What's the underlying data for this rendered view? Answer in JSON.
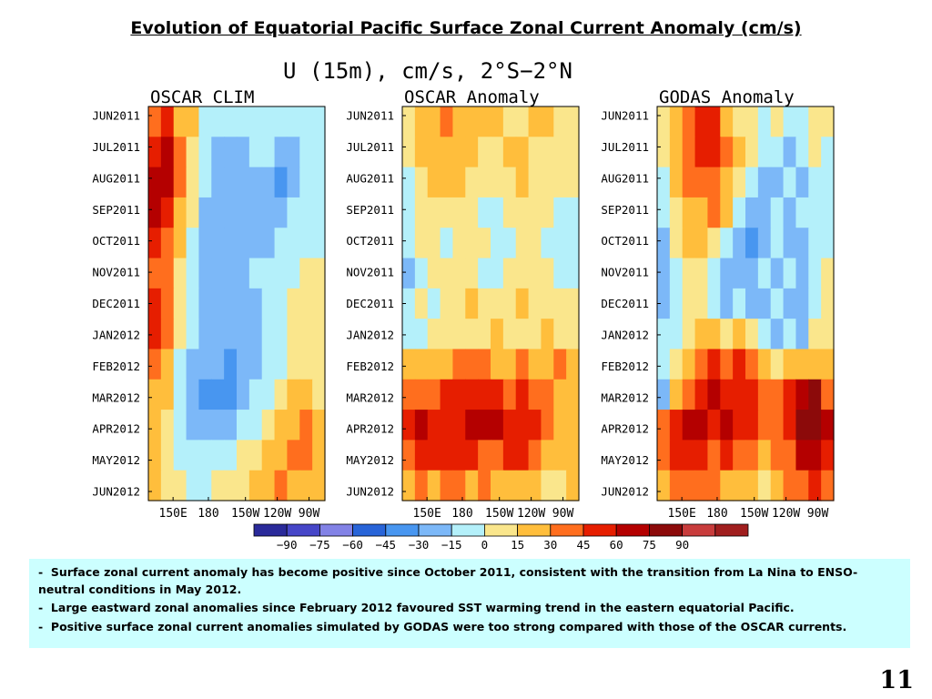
{
  "slide": {
    "title": "Evolution of Equatorial Pacific Surface Zonal Current Anomaly (cm/s)",
    "page_number": "11",
    "bullets": [
      "Surface zonal current anomaly has become positive since October 2011, consistent with the transition from La Nina to ENSO-neutral conditions in May 2012.",
      "Large eastward zonal anomalies since February 2012 favoured SST warming trend in the eastern equatorial Pacific.",
      "Positive surface zonal current anomalies simulated by GODAS were too strong compared with those of the OSCAR currents."
    ],
    "bullet_marker": "-"
  },
  "chart_data": {
    "type": "heatmap",
    "title": "U (15m), cm/s, 2°S−2°N",
    "time_labels": [
      "JUN2011",
      "JUL2011",
      "AUG2011",
      "SEP2011",
      "OCT2011",
      "NOV2011",
      "DEC2011",
      "JAN2012",
      "FEB2012",
      "MAR2012",
      "APR2012",
      "MAY2012",
      "JUN2012"
    ],
    "lon_labels": [
      "150E",
      "180",
      "150W",
      "120W",
      "90W"
    ],
    "colorbar": {
      "ticks": [
        -90,
        -75,
        -60,
        -45,
        -30,
        -15,
        0,
        15,
        30,
        45,
        60,
        75,
        90
      ],
      "colors": [
        "#2a2a9a",
        "#4646c8",
        "#8282e6",
        "#2864d8",
        "#4896f0",
        "#7cb8f8",
        "#b4f0fa",
        "#fae68c",
        "#ffbe3c",
        "#ff6e1e",
        "#e61e00",
        "#b40000",
        "#8c0a0a",
        "#c83c3c",
        "#a01e1e"
      ]
    },
    "panels": [
      {
        "name": "OSCAR CLIM",
        "grid": [
          [
            30,
            45,
            15,
            15,
            -15,
            -15,
            -15,
            -15,
            -15,
            -15,
            -15,
            -15,
            -15,
            -15
          ],
          [
            45,
            60,
            30,
            0,
            -15,
            -30,
            -30,
            -30,
            -15,
            -15,
            -30,
            -30,
            -15,
            -15
          ],
          [
            60,
            60,
            30,
            0,
            -15,
            -30,
            -30,
            -30,
            -30,
            -30,
            -45,
            -30,
            -15,
            -15
          ],
          [
            60,
            45,
            15,
            0,
            -30,
            -30,
            -30,
            -30,
            -30,
            -30,
            -30,
            -15,
            -15,
            -15
          ],
          [
            45,
            30,
            15,
            -15,
            -30,
            -30,
            -30,
            -30,
            -30,
            -30,
            -15,
            -15,
            -15,
            -15
          ],
          [
            30,
            30,
            0,
            -15,
            -30,
            -30,
            -30,
            -30,
            -15,
            -15,
            -15,
            -15,
            0,
            0
          ],
          [
            45,
            30,
            0,
            -15,
            -30,
            -30,
            -30,
            -30,
            -30,
            -15,
            -15,
            0,
            0,
            0
          ],
          [
            45,
            30,
            0,
            -15,
            -30,
            -30,
            -30,
            -30,
            -30,
            -15,
            -15,
            0,
            0,
            0
          ],
          [
            30,
            15,
            -15,
            -30,
            -30,
            -30,
            -45,
            -30,
            -30,
            -15,
            -15,
            0,
            0,
            0
          ],
          [
            15,
            15,
            -15,
            -30,
            -45,
            -45,
            -45,
            -30,
            -15,
            -15,
            0,
            15,
            15,
            0
          ],
          [
            15,
            0,
            -15,
            -30,
            -30,
            -30,
            -30,
            -15,
            -15,
            0,
            15,
            15,
            30,
            15
          ],
          [
            15,
            0,
            -15,
            -15,
            -15,
            -15,
            -15,
            0,
            0,
            15,
            15,
            30,
            30,
            15
          ],
          [
            15,
            0,
            0,
            -15,
            -15,
            0,
            0,
            0,
            15,
            15,
            30,
            15,
            15,
            15
          ]
        ]
      },
      {
        "name": "OSCAR Anomaly",
        "grid": [
          [
            0,
            15,
            15,
            30,
            15,
            15,
            15,
            15,
            0,
            0,
            15,
            15,
            0,
            0
          ],
          [
            0,
            15,
            15,
            15,
            15,
            15,
            0,
            0,
            15,
            15,
            0,
            0,
            0,
            0
          ],
          [
            -15,
            0,
            15,
            15,
            15,
            0,
            0,
            0,
            0,
            15,
            0,
            0,
            0,
            0
          ],
          [
            -15,
            0,
            0,
            0,
            0,
            0,
            -15,
            -15,
            0,
            0,
            0,
            0,
            -15,
            -15
          ],
          [
            -15,
            0,
            0,
            -15,
            0,
            0,
            0,
            -15,
            -15,
            0,
            0,
            -15,
            -15,
            -15
          ],
          [
            -30,
            -15,
            0,
            0,
            0,
            0,
            -15,
            -15,
            0,
            0,
            0,
            0,
            -15,
            -15
          ],
          [
            -15,
            0,
            -15,
            0,
            0,
            15,
            0,
            0,
            0,
            15,
            0,
            0,
            0,
            0
          ],
          [
            -15,
            -15,
            0,
            0,
            0,
            0,
            0,
            15,
            0,
            0,
            0,
            15,
            0,
            0
          ],
          [
            15,
            15,
            15,
            15,
            30,
            30,
            30,
            15,
            15,
            30,
            15,
            15,
            30,
            15
          ],
          [
            30,
            30,
            30,
            45,
            45,
            45,
            45,
            45,
            30,
            45,
            30,
            30,
            15,
            15
          ],
          [
            45,
            60,
            45,
            45,
            45,
            60,
            60,
            60,
            45,
            45,
            45,
            30,
            15,
            15
          ],
          [
            30,
            45,
            45,
            45,
            45,
            45,
            30,
            30,
            45,
            45,
            30,
            15,
            15,
            15
          ],
          [
            15,
            30,
            15,
            30,
            30,
            15,
            30,
            15,
            15,
            15,
            15,
            0,
            0,
            15
          ]
        ]
      },
      {
        "name": "GODAS Anomaly",
        "grid": [
          [
            0,
            15,
            30,
            45,
            45,
            15,
            0,
            0,
            -15,
            0,
            -15,
            -15,
            0,
            0
          ],
          [
            0,
            15,
            30,
            45,
            45,
            30,
            15,
            0,
            -15,
            -15,
            -30,
            -15,
            0,
            -15
          ],
          [
            -15,
            15,
            30,
            30,
            30,
            15,
            0,
            -15,
            -30,
            -30,
            -15,
            -30,
            -15,
            -15
          ],
          [
            -15,
            0,
            15,
            15,
            30,
            15,
            -15,
            -30,
            -30,
            -15,
            -30,
            -15,
            -15,
            -15
          ],
          [
            -30,
            0,
            15,
            15,
            0,
            -15,
            -30,
            -45,
            -30,
            -15,
            -30,
            -30,
            -15,
            -15
          ],
          [
            -30,
            -15,
            0,
            0,
            -15,
            -30,
            -30,
            -30,
            -15,
            -30,
            -15,
            -30,
            -15,
            0
          ],
          [
            -30,
            -15,
            0,
            0,
            -15,
            -30,
            -15,
            -30,
            -30,
            -15,
            -30,
            -30,
            -15,
            0
          ],
          [
            -15,
            -15,
            0,
            15,
            15,
            0,
            15,
            0,
            -15,
            -30,
            -15,
            -30,
            0,
            0
          ],
          [
            -15,
            0,
            15,
            30,
            45,
            30,
            45,
            30,
            15,
            0,
            15,
            15,
            15,
            15
          ],
          [
            -30,
            15,
            30,
            45,
            60,
            45,
            45,
            45,
            30,
            30,
            45,
            60,
            75,
            30
          ],
          [
            30,
            45,
            60,
            60,
            45,
            60,
            45,
            45,
            30,
            30,
            45,
            75,
            75,
            60
          ],
          [
            30,
            45,
            45,
            45,
            30,
            45,
            30,
            30,
            15,
            30,
            30,
            60,
            60,
            45
          ],
          [
            15,
            30,
            30,
            30,
            30,
            15,
            15,
            15,
            0,
            15,
            30,
            30,
            45,
            30
          ]
        ]
      }
    ]
  }
}
